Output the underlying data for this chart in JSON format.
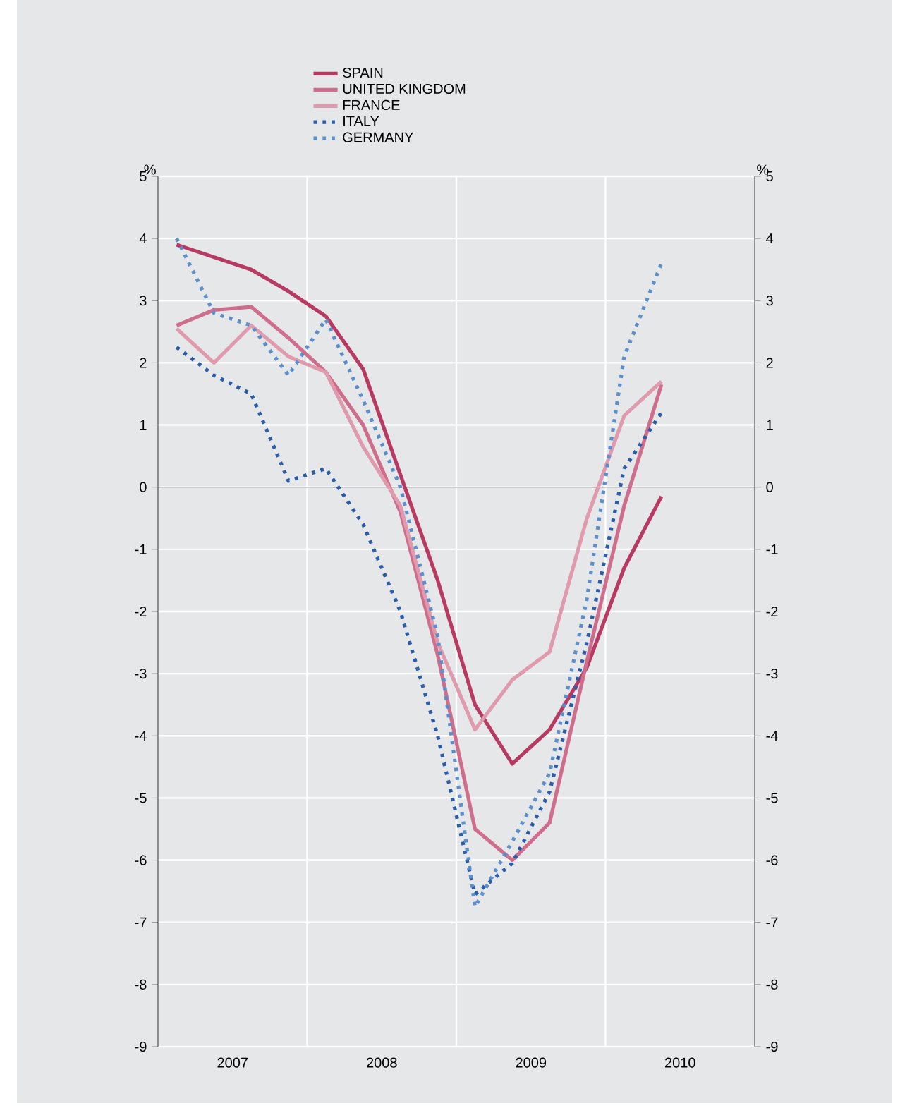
{
  "chart_data": {
    "type": "line",
    "ylabel": "%",
    "y2label": "%",
    "x": [
      2007.125,
      2007.375,
      2007.625,
      2007.875,
      2008.125,
      2008.375,
      2008.625,
      2008.875,
      2009.125,
      2009.375,
      2009.625,
      2009.875,
      2010.125,
      2010.375
    ],
    "series": [
      {
        "name": "SPAIN",
        "color": "#b83a62",
        "line_style": "solid",
        "values": [
          3.9,
          3.7,
          3.5,
          3.15,
          2.75,
          1.9,
          0.2,
          -1.5,
          -3.5,
          -4.45,
          -3.9,
          -2.9,
          -1.3,
          -0.15
        ]
      },
      {
        "name": "UNITED KINGDOM",
        "color": "#cf6e8c",
        "line_style": "solid",
        "values": [
          2.6,
          2.85,
          2.9,
          2.4,
          1.85,
          1.0,
          -0.4,
          -2.7,
          -5.5,
          -6.0,
          -5.4,
          -2.8,
          -0.3,
          1.65
        ]
      },
      {
        "name": "FRANCE",
        "color": "#e09aae",
        "line_style": "solid",
        "values": [
          2.55,
          2.0,
          2.6,
          2.1,
          1.85,
          0.65,
          -0.3,
          -2.5,
          -3.9,
          -3.1,
          -2.65,
          -0.5,
          1.15,
          1.7
        ]
      },
      {
        "name": "ITALY",
        "color": "#2a5caa",
        "line_style": "dotted",
        "values": [
          2.25,
          1.8,
          1.5,
          0.1,
          0.3,
          -0.6,
          -2.0,
          -4.0,
          -6.55,
          -6.05,
          -4.9,
          -2.5,
          0.3,
          1.2
        ]
      },
      {
        "name": "GERMANY",
        "color": "#5b8fcc",
        "line_style": "dotted",
        "values": [
          4.0,
          2.8,
          2.6,
          1.8,
          2.7,
          1.4,
          0.0,
          -2.4,
          -6.75,
          -5.7,
          -4.6,
          -1.8,
          2.1,
          3.6
        ]
      }
    ],
    "xlim": [
      2007,
      2011
    ],
    "xticks": [
      {
        "value": 2007.5,
        "label": "2007"
      },
      {
        "value": 2008,
        "label": null
      },
      {
        "value": 2008.5,
        "label": "2008"
      },
      {
        "value": 2009,
        "label": null
      },
      {
        "value": 2009.5,
        "label": "2009"
      },
      {
        "value": 2010,
        "label": null
      },
      {
        "value": 2010.5,
        "label": "2010"
      }
    ],
    "ylim": [
      -9,
      5
    ],
    "yticks": [
      -9,
      -8,
      -7,
      -6,
      -5,
      -4,
      -3,
      -2,
      -1,
      0,
      1,
      2,
      3,
      4,
      5
    ],
    "y2lim": [
      -9,
      5
    ],
    "y2ticks": [
      -9,
      -8,
      -7,
      -6,
      -5,
      -4,
      -3,
      -2,
      -1,
      0,
      1,
      2,
      3,
      4,
      5
    ],
    "ref_lines": [
      {
        "axis": "y",
        "value": 0,
        "color": "#333333"
      }
    ],
    "grid": true,
    "legend": "top",
    "marker": "none"
  }
}
